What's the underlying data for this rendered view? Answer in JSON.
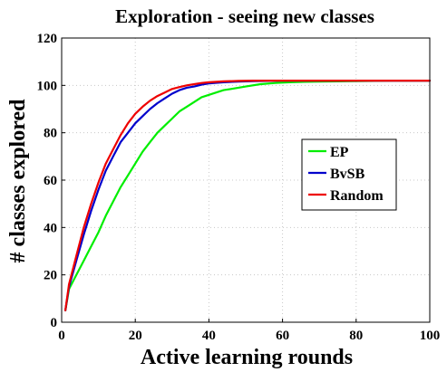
{
  "chart_data": {
    "type": "line",
    "title": "Exploration - seeing new classes",
    "xlabel": "Active learning rounds",
    "ylabel": "# classes explored",
    "xlim": [
      0,
      100
    ],
    "ylim": [
      0,
      120
    ],
    "xticks": [
      0,
      20,
      40,
      60,
      80,
      100
    ],
    "yticks": [
      0,
      20,
      40,
      60,
      80,
      100,
      120
    ],
    "grid": true,
    "legend_position": "center-right",
    "series": [
      {
        "name": "EP",
        "color": "#00ee00",
        "x": [
          1,
          2,
          4,
          6,
          8,
          10,
          12,
          14,
          16,
          18,
          20,
          22,
          24,
          26,
          28,
          30,
          32,
          34,
          36,
          38,
          40,
          42,
          44,
          46,
          48,
          50,
          54,
          58,
          62,
          66,
          70,
          75,
          80,
          85,
          90,
          95,
          100
        ],
        "y": [
          5,
          14,
          20,
          26,
          32,
          38,
          45,
          51,
          57,
          62,
          67,
          72,
          76,
          80,
          83,
          86,
          89,
          91,
          93,
          95,
          96,
          97,
          98,
          98.5,
          99,
          99.5,
          100.5,
          101,
          101.3,
          101.5,
          101.6,
          101.7,
          101.8,
          101.9,
          102,
          102,
          102
        ]
      },
      {
        "name": "BvSB",
        "color": "#0000cc",
        "x": [
          1,
          2,
          4,
          6,
          8,
          10,
          12,
          14,
          16,
          18,
          20,
          22,
          24,
          26,
          28,
          30,
          32,
          34,
          36,
          38,
          40,
          44,
          48,
          52,
          56,
          60,
          70,
          80,
          90,
          100
        ],
        "y": [
          5,
          15,
          26,
          37,
          47,
          56,
          64,
          70,
          76,
          80,
          84,
          87,
          90,
          92.5,
          94.5,
          96.5,
          98,
          99,
          99.5,
          100.3,
          100.8,
          101.3,
          101.6,
          101.8,
          101.9,
          102,
          102,
          102,
          102,
          102
        ]
      },
      {
        "name": "Random",
        "color": "#ee0000",
        "x": [
          1,
          2,
          4,
          6,
          8,
          10,
          12,
          14,
          16,
          18,
          20,
          22,
          24,
          26,
          28,
          30,
          32,
          34,
          36,
          38,
          40,
          44,
          48,
          52,
          56,
          60,
          70,
          80,
          90,
          100
        ],
        "y": [
          5,
          16,
          28,
          40,
          50,
          59,
          67,
          73,
          79,
          84,
          88,
          91,
          93.5,
          95.5,
          97,
          98.5,
          99.3,
          100,
          100.5,
          101,
          101.3,
          101.7,
          101.9,
          102,
          102,
          102,
          102,
          102,
          102,
          102
        ]
      }
    ]
  }
}
